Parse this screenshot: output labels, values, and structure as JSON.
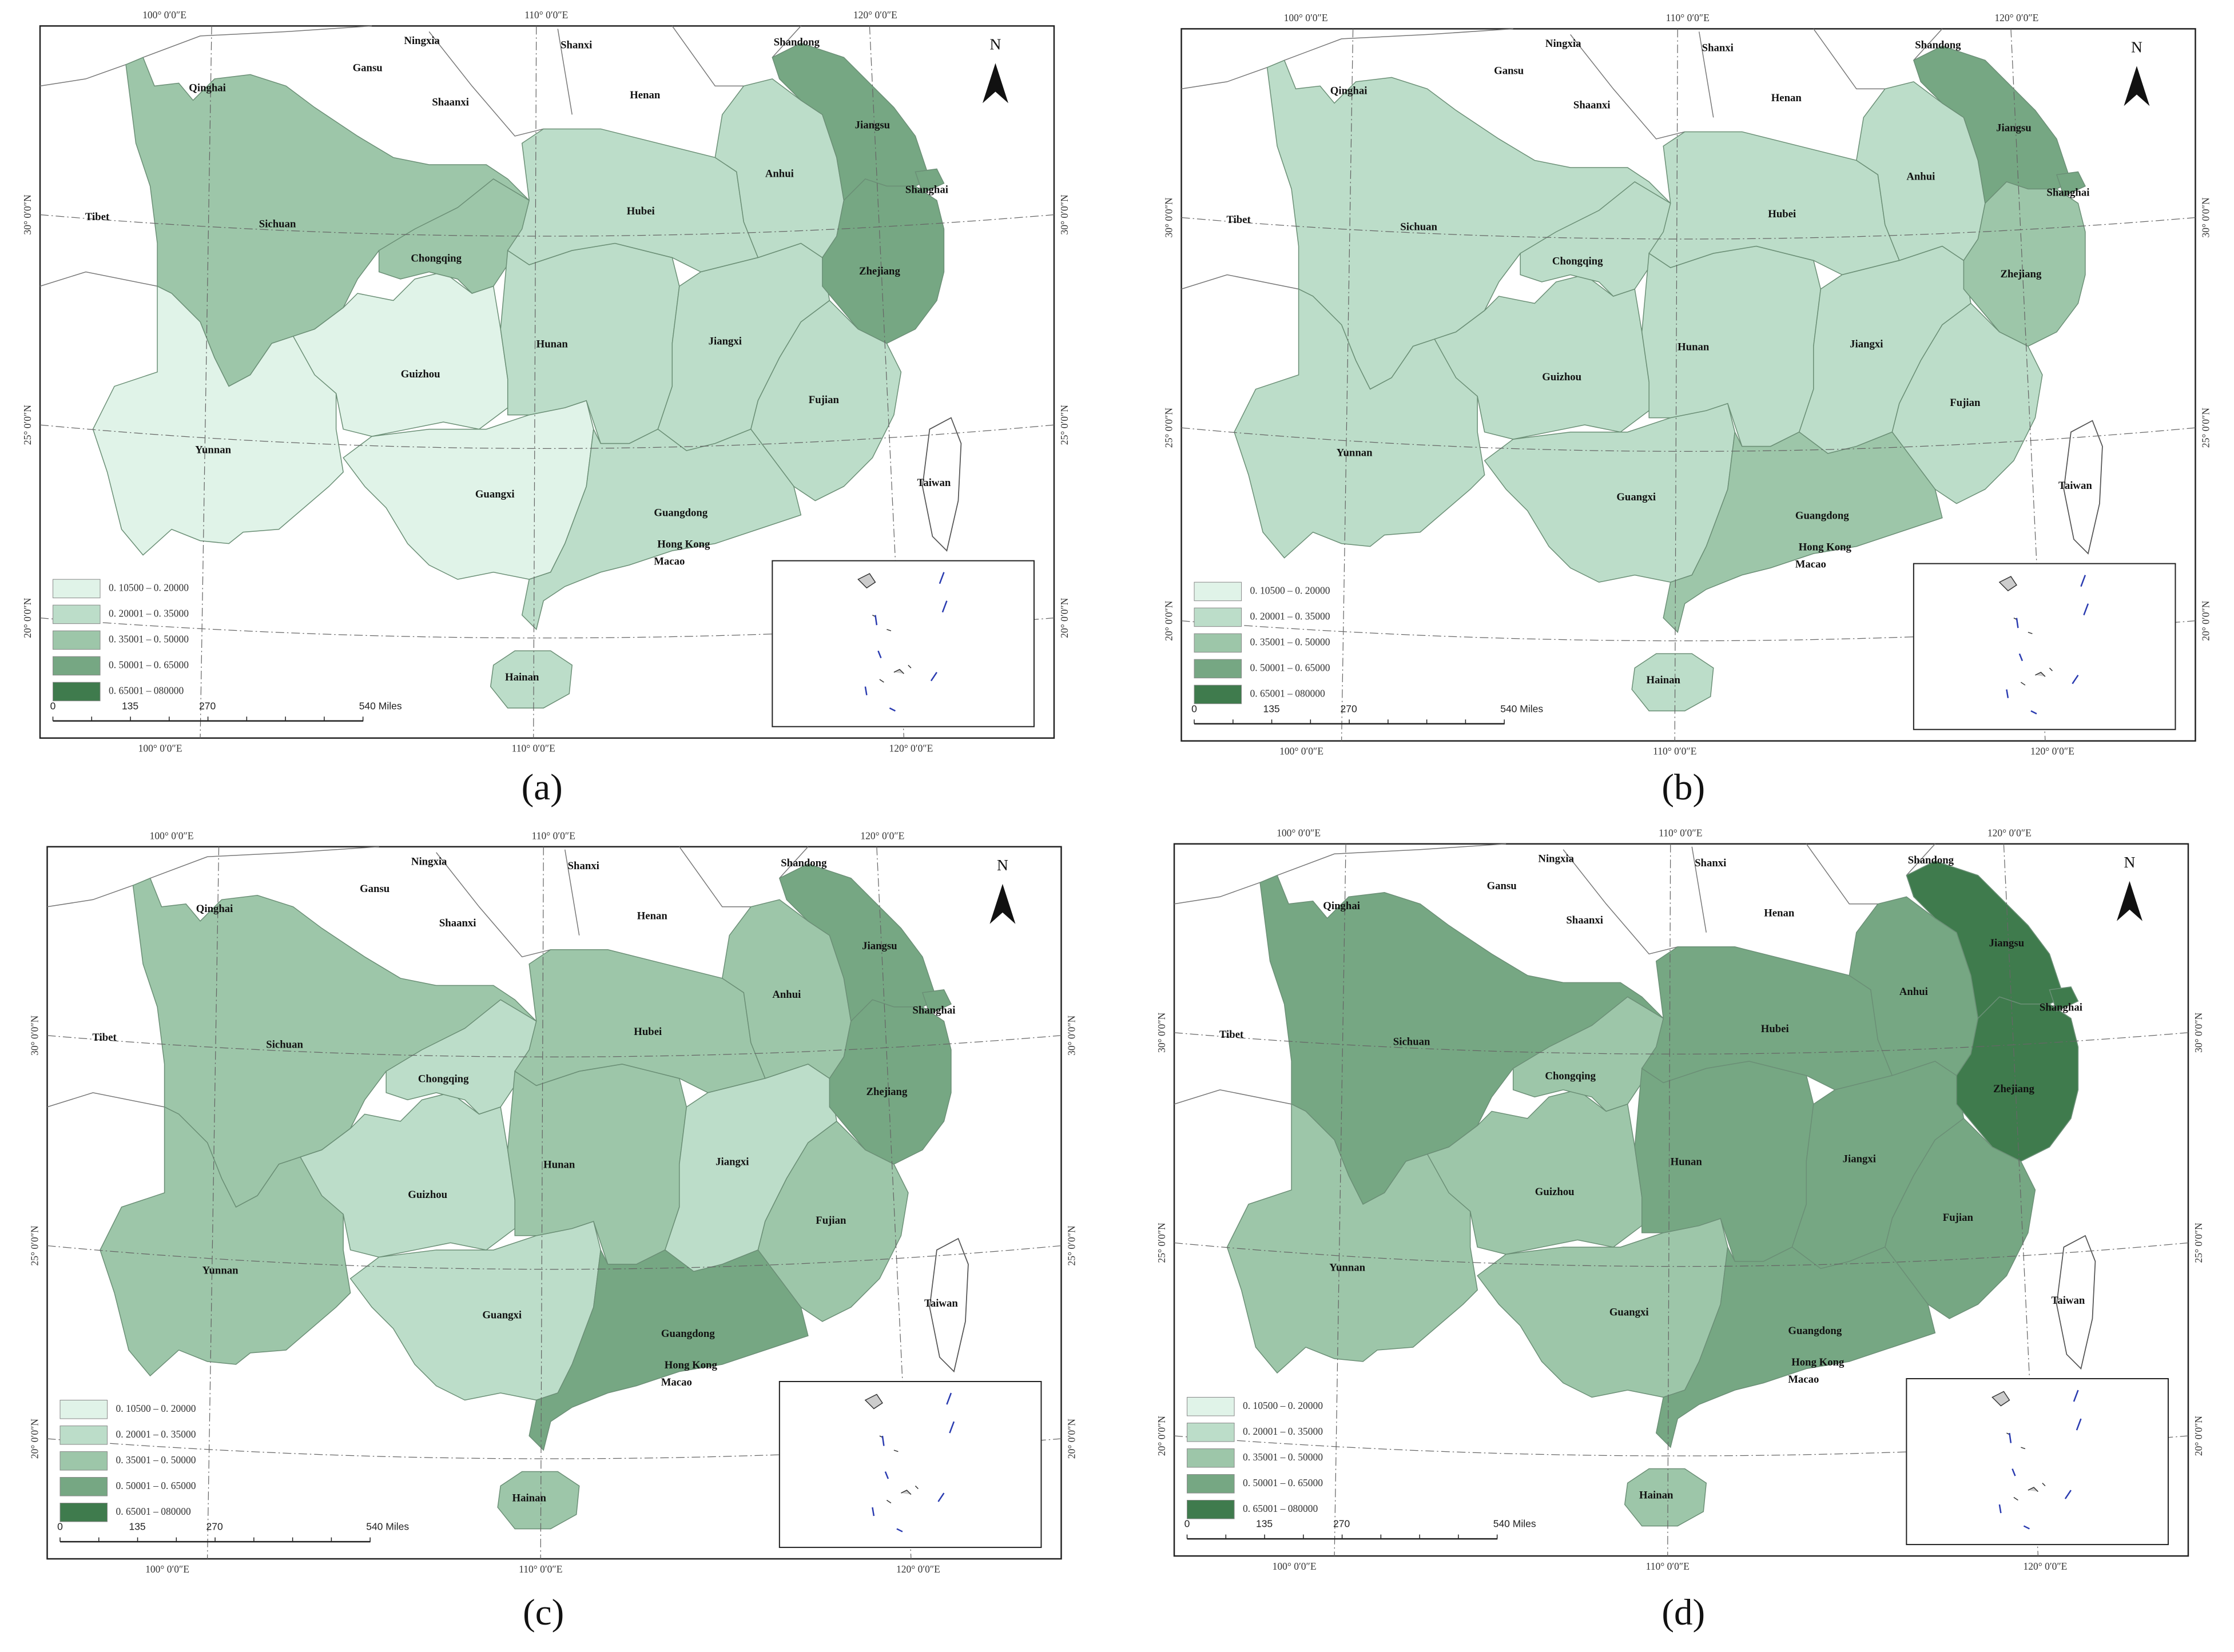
{
  "map": {
    "regions": [
      "Sichuan",
      "Yunnan",
      "Guizhou",
      "Chongqing",
      "Guangxi",
      "Hunan",
      "Hubei",
      "Jiangxi",
      "Anhui",
      "Jiangsu",
      "Zhejiang",
      "Shanghai",
      "Fujian",
      "Guangdong",
      "Hainan"
    ],
    "neighbors": [
      "Qinghai",
      "Gansu",
      "Ningxia",
      "Shaanxi",
      "Shanxi",
      "Henan",
      "Shandong",
      "Tibet",
      "Taiwan",
      "Hong Kong",
      "Macao"
    ],
    "north": "N",
    "graticule": {
      "lon": [
        "100° 0′0″E",
        "110° 0′0″E",
        "120° 0′0″E"
      ],
      "lat": [
        "30° 0′0″N",
        "25° 0′0″N",
        "20° 0′0″N"
      ]
    },
    "legend": [
      {
        "label": "0. 10500 – 0. 20000",
        "color": "#e0f3e8"
      },
      {
        "label": "0. 20001 – 0. 35000",
        "color": "#bcddc9"
      },
      {
        "label": "0. 35001 – 0. 50000",
        "color": "#9dc6a9"
      },
      {
        "label": "0. 50001 – 0. 65000",
        "color": "#76a783"
      },
      {
        "label": "0. 65001 – 080000",
        "color": "#3f7b4d"
      }
    ],
    "scale_bar": [
      "0",
      "135",
      "270",
      "540 Miles"
    ]
  },
  "panels": [
    {
      "label": "(a)",
      "fills": [
        "#9dc6a9",
        "#e0f3e8",
        "#e0f3e8",
        "#9dc6a9",
        "#e0f3e8",
        "#bcddc9",
        "#bcddc9",
        "#bcddc9",
        "#bcddc9",
        "#76a783",
        "#76a783",
        "#76a783",
        "#bcddc9",
        "#bcddc9",
        "#bcddc9"
      ]
    },
    {
      "label": "(b)",
      "fills": [
        "#bcddc9",
        "#bcddc9",
        "#bcddc9",
        "#bcddc9",
        "#bcddc9",
        "#bcddc9",
        "#bcddc9",
        "#bcddc9",
        "#bcddc9",
        "#76a783",
        "#9dc6a9",
        "#76a783",
        "#bcddc9",
        "#9dc6a9",
        "#bcddc9"
      ]
    },
    {
      "label": "(c)",
      "fills": [
        "#9dc6a9",
        "#9dc6a9",
        "#bcddc9",
        "#bcddc9",
        "#bcddc9",
        "#9dc6a9",
        "#9dc6a9",
        "#bcddc9",
        "#9dc6a9",
        "#76a783",
        "#76a783",
        "#76a783",
        "#9dc6a9",
        "#76a783",
        "#9dc6a9"
      ]
    },
    {
      "label": "(d)",
      "fills": [
        "#76a783",
        "#9dc6a9",
        "#9dc6a9",
        "#9dc6a9",
        "#9dc6a9",
        "#76a783",
        "#76a783",
        "#76a783",
        "#76a783",
        "#3f7b4d",
        "#3f7b4d",
        "#3f7b4d",
        "#76a783",
        "#76a783",
        "#9dc6a9"
      ]
    }
  ]
}
